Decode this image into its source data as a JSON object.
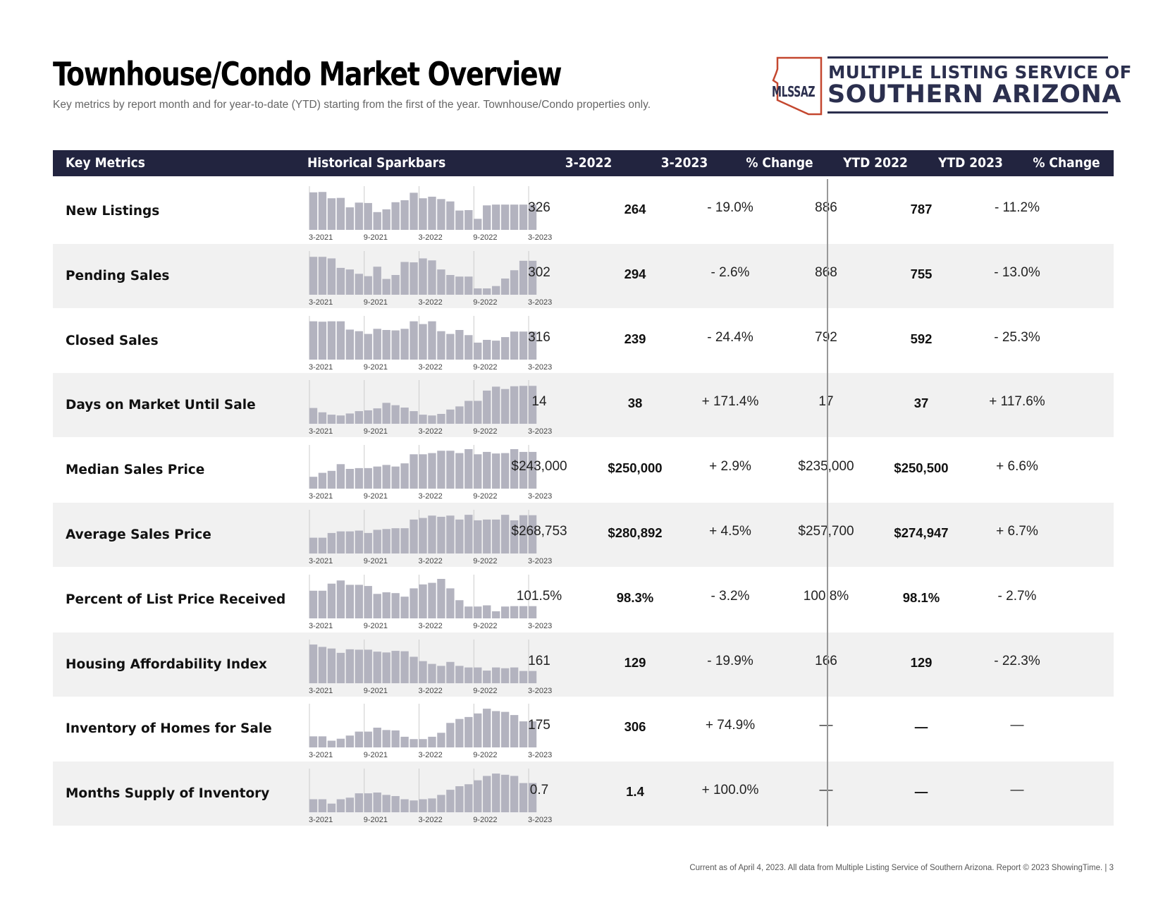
{
  "header": {
    "title": "Townhouse/Condo Market Overview",
    "subtitle": "Key metrics by report month and for year-to-date (YTD) starting from the first of the year. Townhouse/Condo properties only."
  },
  "logo": {
    "abbr": "MLSSAZ",
    "line1": "MULTIPLE LISTING SERVICE OF",
    "line2": "SOUTHERN ARIZONA",
    "color": "#2b2f4e",
    "accent": "#c4472f"
  },
  "table": {
    "headers": [
      "Key Metrics",
      "Historical Sparkbars",
      "3-2022",
      "3-2023",
      "% Change",
      "YTD 2022",
      "YTD 2023",
      "% Change"
    ],
    "tick_labels": [
      "3-2021",
      "9-2021",
      "3-2022",
      "9-2022",
      "3-2023"
    ],
    "rows": [
      {
        "metric": "New Listings",
        "m2022": "326",
        "m2023": "264",
        "pct": "- 19.0%",
        "ytd2022": "886",
        "ytd2023": "787",
        "ytdpct": "- 11.2%",
        "spark": [
          0.95,
          0.96,
          0.8,
          0.81,
          0.57,
          0.69,
          0.68,
          0.45,
          0.52,
          0.7,
          0.75,
          0.94,
          0.8,
          0.84,
          0.78,
          0.72,
          0.49,
          0.5,
          0.28,
          0.62,
          0.64,
          0.64,
          0.64,
          0.64,
          0.64
        ]
      },
      {
        "metric": "Pending Sales",
        "m2022": "302",
        "m2023": "294",
        "pct": "- 2.6%",
        "ytd2022": "868",
        "ytd2023": "755",
        "ytdpct": "- 13.0%",
        "spark": [
          0.96,
          0.96,
          0.92,
          0.68,
          0.64,
          0.53,
          0.47,
          0.71,
          0.4,
          0.5,
          0.83,
          0.82,
          0.92,
          0.87,
          0.64,
          0.5,
          0.46,
          0.46,
          0.16,
          0.16,
          0.22,
          0.41,
          0.62,
          0.86,
          0.86
        ]
      },
      {
        "metric": "Closed Sales",
        "m2022": "316",
        "m2023": "239",
        "pct": "- 24.4%",
        "ytd2022": "792",
        "ytd2023": "592",
        "ytdpct": "- 25.3%",
        "spark": [
          0.97,
          0.96,
          0.97,
          0.97,
          0.76,
          0.72,
          0.65,
          0.78,
          0.75,
          0.74,
          0.78,
          0.97,
          0.9,
          0.97,
          0.72,
          0.65,
          0.75,
          0.62,
          0.43,
          0.5,
          0.48,
          0.57,
          0.71,
          0.71,
          0.71
        ]
      },
      {
        "metric": "Days on Market Until Sale",
        "m2022": "14",
        "m2023": "38",
        "pct": "+ 171.4%",
        "ytd2022": "17",
        "ytd2023": "37",
        "ytdpct": "+ 117.6%",
        "spark": [
          0.4,
          0.29,
          0.23,
          0.21,
          0.26,
          0.32,
          0.34,
          0.39,
          0.53,
          0.47,
          0.41,
          0.32,
          0.23,
          0.21,
          0.25,
          0.36,
          0.44,
          0.58,
          0.58,
          0.84,
          0.94,
          0.88,
          0.95,
          0.96,
          0.96
        ]
      },
      {
        "metric": "Median Sales Price",
        "m2022": "$243,000",
        "m2023": "$250,000",
        "pct": "+ 2.9%",
        "ytd2022": "$235,000",
        "ytd2023": "$250,500",
        "ytdpct": "+ 6.6%",
        "spark": [
          0.3,
          0.4,
          0.45,
          0.62,
          0.5,
          0.52,
          0.52,
          0.56,
          0.6,
          0.56,
          0.64,
          0.87,
          0.87,
          0.9,
          0.96,
          0.96,
          0.9,
          1.0,
          0.87,
          0.93,
          0.89,
          0.9,
          1.0,
          0.93,
          0.93
        ]
      },
      {
        "metric": "Average Sales Price",
        "m2022": "$268,753",
        "m2023": "$280,892",
        "pct": "+ 4.5%",
        "ytd2022": "$257,700",
        "ytd2023": "$274,947",
        "ytdpct": "+ 6.7%",
        "spark": [
          0.4,
          0.4,
          0.52,
          0.56,
          0.56,
          0.58,
          0.52,
          0.6,
          0.62,
          0.64,
          0.64,
          0.86,
          0.9,
          0.96,
          0.93,
          0.96,
          0.86,
          0.98,
          0.84,
          0.86,
          0.86,
          0.98,
          0.84,
          0.97,
          0.97
        ]
      },
      {
        "metric": "Percent of List Price Received",
        "m2022": "101.5%",
        "m2023": "98.3%",
        "pct": "- 3.2%",
        "ytd2022": "100.8%",
        "ytd2023": "98.1%",
        "ytdpct": "- 2.7%",
        "spark": [
          0.7,
          0.7,
          0.88,
          0.96,
          0.85,
          0.85,
          0.82,
          0.62,
          0.66,
          0.64,
          0.55,
          0.76,
          0.86,
          0.9,
          1.0,
          0.76,
          0.46,
          0.3,
          0.3,
          0.33,
          0.18,
          0.3,
          0.31,
          0.31,
          0.31
        ]
      },
      {
        "metric": "Housing Affordability Index",
        "m2022": "161",
        "m2023": "129",
        "pct": "- 19.9%",
        "ytd2022": "166",
        "ytd2023": "129",
        "ytdpct": "- 22.3%",
        "spark": [
          0.98,
          0.92,
          0.88,
          0.77,
          0.86,
          0.85,
          0.85,
          0.8,
          0.78,
          0.82,
          0.81,
          0.67,
          0.56,
          0.49,
          0.44,
          0.54,
          0.44,
          0.4,
          0.4,
          0.32,
          0.4,
          0.38,
          0.4,
          0.31,
          0.31
        ]
      },
      {
        "metric": "Inventory of Homes for Sale",
        "m2022": "175",
        "m2023": "306",
        "pct": "+ 74.9%",
        "ytd2022": "—",
        "ytd2023": "—",
        "ytdpct": "—",
        "spark": [
          0.28,
          0.28,
          0.17,
          0.22,
          0.3,
          0.4,
          0.4,
          0.5,
          0.44,
          0.43,
          0.27,
          0.21,
          0.21,
          0.27,
          0.37,
          0.62,
          0.72,
          0.77,
          0.86,
          0.98,
          0.92,
          0.9,
          0.82,
          0.66,
          0.66
        ]
      },
      {
        "metric": "Months Supply of Inventory",
        "m2022": "0.7",
        "m2023": "1.4",
        "pct": "+ 100.0%",
        "ytd2022": "—",
        "ytd2023": "—",
        "ytdpct": "—",
        "spark": [
          0.33,
          0.33,
          0.22,
          0.33,
          0.37,
          0.48,
          0.48,
          0.5,
          0.44,
          0.41,
          0.33,
          0.3,
          0.33,
          0.35,
          0.44,
          0.57,
          0.66,
          0.71,
          0.81,
          0.92,
          0.98,
          0.95,
          0.92,
          0.74,
          0.74
        ]
      }
    ]
  },
  "footer": {
    "text": "Current as of April 4, 2023. All data from Multiple Listing Service of Southern Arizona. Report © 2023 ShowingTime.  |  3"
  }
}
